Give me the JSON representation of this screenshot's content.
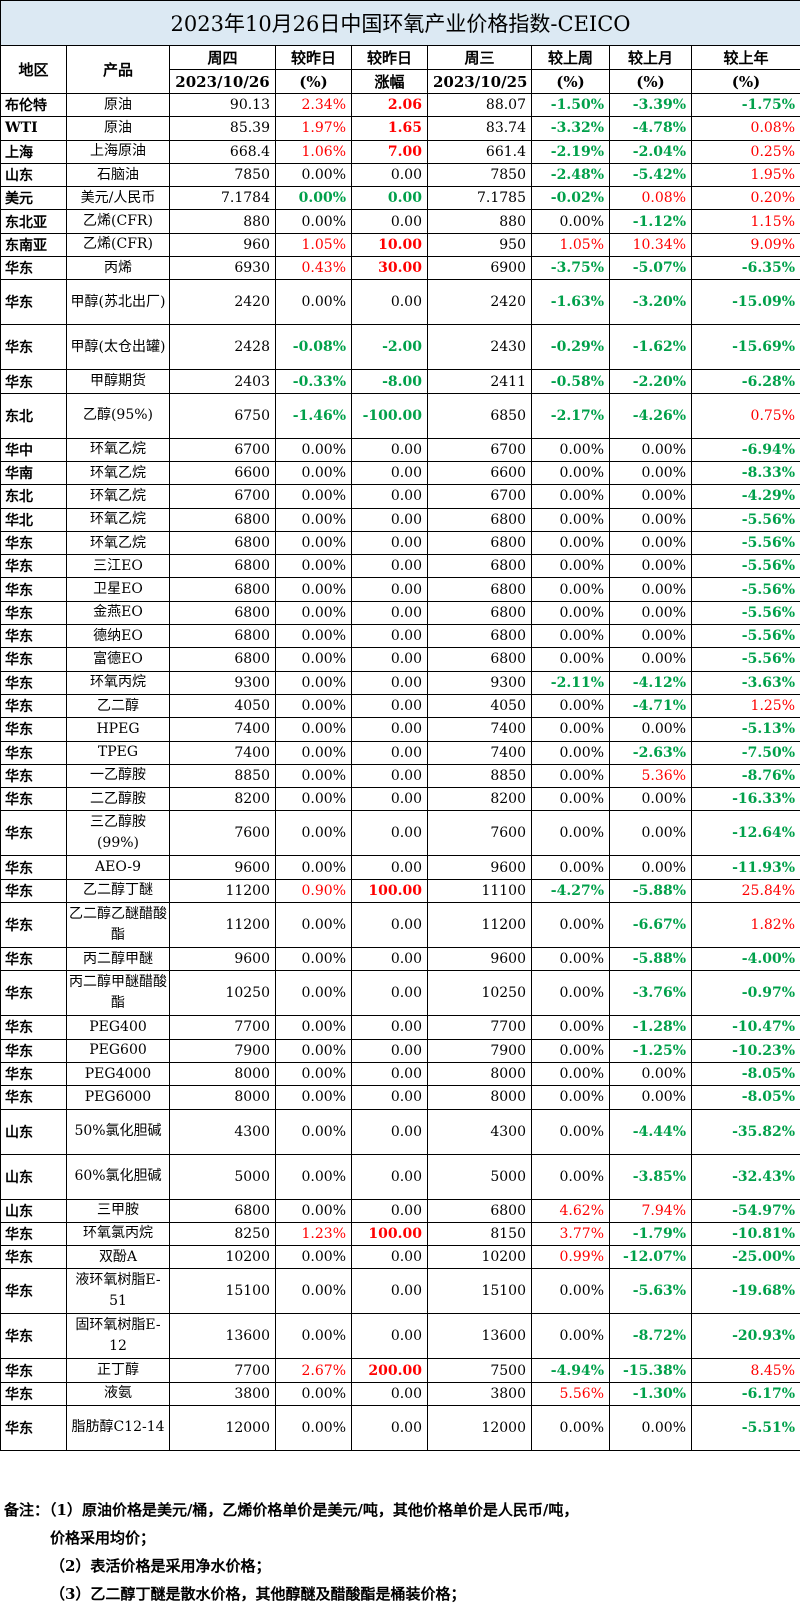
{
  "title": "2023年10月26日中国环氧产业价格指数-CEICO",
  "headers": {
    "region": "地区",
    "product": "产品",
    "thu": "周四",
    "thu_date": "2023/10/26",
    "vs_yesterday_pct": "较昨日",
    "pct_unit": "(%)",
    "vs_yesterday_abs": "较昨日",
    "abs_unit": "涨幅",
    "wed": "周三",
    "wed_date": "2023/10/25",
    "vs_last_week": "较上周",
    "vs_last_month": "较上月",
    "vs_last_year": "较上年"
  },
  "rows": [
    {
      "region": "布伦特",
      "product": "原油",
      "thu": "90.13",
      "dpct": "2.34%",
      "dabs": "2.06",
      "wed": "88.07",
      "week": "-1.50%",
      "month": "-3.39%",
      "year": "-1.75%"
    },
    {
      "region": "WTI",
      "product": "原油",
      "thu": "85.39",
      "dpct": "1.97%",
      "dabs": "1.65",
      "wed": "83.74",
      "week": "-3.32%",
      "month": "-4.78%",
      "year": "0.08%"
    },
    {
      "region": "上海",
      "product": "上海原油",
      "thu": "668.4",
      "dpct": "1.06%",
      "dabs": "7.00",
      "wed": "661.4",
      "week": "-2.19%",
      "month": "-2.04%",
      "year": "0.25%"
    },
    {
      "region": "山东",
      "product": "石脑油",
      "thu": "7850",
      "dpct": "0.00%",
      "dabs": "0.00",
      "wed": "7850",
      "week": "-2.48%",
      "month": "-5.42%",
      "year": "1.95%"
    },
    {
      "region": "美元",
      "product": "美元/人民币",
      "thu": "7.1784",
      "dpct": "0.00%",
      "dabs": "0.00",
      "wed": "7.1785",
      "week": "-0.02%",
      "month": "0.08%",
      "year": "0.20%"
    },
    {
      "region": "东北亚",
      "product": "乙烯(CFR)",
      "thu": "880",
      "dpct": "0.00%",
      "dabs": "0.00",
      "wed": "880",
      "week": "0.00%",
      "month": "-1.12%",
      "year": "1.15%"
    },
    {
      "region": "东南亚",
      "product": "乙烯(CFR)",
      "thu": "960",
      "dpct": "1.05%",
      "dabs": "10.00",
      "wed": "950",
      "week": "1.05%",
      "month": "10.34%",
      "year": "9.09%"
    },
    {
      "region": "华东",
      "product": "丙烯",
      "thu": "6930",
      "dpct": "0.43%",
      "dabs": "30.00",
      "wed": "6900",
      "week": "-3.75%",
      "month": "-5.07%",
      "year": "-6.35%"
    },
    {
      "region": "华东",
      "product": "甲醇(苏北出厂)",
      "thu": "2420",
      "dpct": "0.00%",
      "dabs": "0.00",
      "wed": "2420",
      "week": "-1.63%",
      "month": "-3.20%",
      "year": "-15.09%"
    },
    {
      "region": "华东",
      "product": "甲醇(太仓出罐)",
      "thu": "2428",
      "dpct": "-0.08%",
      "dabs": "-2.00",
      "wed": "2430",
      "week": "-0.29%",
      "month": "-1.62%",
      "year": "-15.69%"
    },
    {
      "region": "华东",
      "product": "甲醇期货",
      "thu": "2403",
      "dpct": "-0.33%",
      "dabs": "-8.00",
      "wed": "2411",
      "week": "-0.58%",
      "month": "-2.20%",
      "year": "-6.28%"
    },
    {
      "region": "东北",
      "product": "乙醇(95%)",
      "thu": "6750",
      "dpct": "-1.46%",
      "dabs": "-100.00",
      "wed": "6850",
      "week": "-2.17%",
      "month": "-4.26%",
      "year": "0.75%"
    },
    {
      "region": "华中",
      "product": "环氧乙烷",
      "thu": "6700",
      "dpct": "0.00%",
      "dabs": "0.00",
      "wed": "6700",
      "week": "0.00%",
      "month": "0.00%",
      "year": "-6.94%"
    },
    {
      "region": "华南",
      "product": "环氧乙烷",
      "thu": "6600",
      "dpct": "0.00%",
      "dabs": "0.00",
      "wed": "6600",
      "week": "0.00%",
      "month": "0.00%",
      "year": "-8.33%"
    },
    {
      "region": "东北",
      "product": "环氧乙烷",
      "thu": "6700",
      "dpct": "0.00%",
      "dabs": "0.00",
      "wed": "6700",
      "week": "0.00%",
      "month": "0.00%",
      "year": "-4.29%"
    },
    {
      "region": "华北",
      "product": "环氧乙烷",
      "thu": "6800",
      "dpct": "0.00%",
      "dabs": "0.00",
      "wed": "6800",
      "week": "0.00%",
      "month": "0.00%",
      "year": "-5.56%"
    },
    {
      "region": "华东",
      "product": "环氧乙烷",
      "thu": "6800",
      "dpct": "0.00%",
      "dabs": "0.00",
      "wed": "6800",
      "week": "0.00%",
      "month": "0.00%",
      "year": "-5.56%"
    },
    {
      "region": "华东",
      "product": "三江EO",
      "thu": "6800",
      "dpct": "0.00%",
      "dabs": "0.00",
      "wed": "6800",
      "week": "0.00%",
      "month": "0.00%",
      "year": "-5.56%"
    },
    {
      "region": "华东",
      "product": "卫星EO",
      "thu": "6800",
      "dpct": "0.00%",
      "dabs": "0.00",
      "wed": "6800",
      "week": "0.00%",
      "month": "0.00%",
      "year": "-5.56%"
    },
    {
      "region": "华东",
      "product": "金燕EO",
      "thu": "6800",
      "dpct": "0.00%",
      "dabs": "0.00",
      "wed": "6800",
      "week": "0.00%",
      "month": "0.00%",
      "year": "-5.56%"
    },
    {
      "region": "华东",
      "product": "德纳EO",
      "thu": "6800",
      "dpct": "0.00%",
      "dabs": "0.00",
      "wed": "6800",
      "week": "0.00%",
      "month": "0.00%",
      "year": "-5.56%"
    },
    {
      "region": "华东",
      "product": "富德EO",
      "thu": "6800",
      "dpct": "0.00%",
      "dabs": "0.00",
      "wed": "6800",
      "week": "0.00%",
      "month": "0.00%",
      "year": "-5.56%"
    },
    {
      "region": "华东",
      "product": "环氧丙烷",
      "thu": "9300",
      "dpct": "0.00%",
      "dabs": "0.00",
      "wed": "9300",
      "week": "-2.11%",
      "month": "-4.12%",
      "year": "-3.63%"
    },
    {
      "region": "华东",
      "product": "乙二醇",
      "thu": "4050",
      "dpct": "0.00%",
      "dabs": "0.00",
      "wed": "4050",
      "week": "0.00%",
      "month": "-4.71%",
      "year": "1.25%"
    },
    {
      "region": "华东",
      "product": "HPEG",
      "thu": "7400",
      "dpct": "0.00%",
      "dabs": "0.00",
      "wed": "7400",
      "week": "0.00%",
      "month": "0.00%",
      "year": "-5.13%"
    },
    {
      "region": "华东",
      "product": "TPEG",
      "thu": "7400",
      "dpct": "0.00%",
      "dabs": "0.00",
      "wed": "7400",
      "week": "0.00%",
      "month": "-2.63%",
      "year": "-7.50%"
    },
    {
      "region": "华东",
      "product": "一乙醇胺",
      "thu": "8850",
      "dpct": "0.00%",
      "dabs": "0.00",
      "wed": "8850",
      "week": "0.00%",
      "month": "5.36%",
      "year": "-8.76%"
    },
    {
      "region": "华东",
      "product": "二乙醇胺",
      "thu": "8200",
      "dpct": "0.00%",
      "dabs": "0.00",
      "wed": "8200",
      "week": "0.00%",
      "month": "0.00%",
      "year": "-16.33%"
    },
    {
      "region": "华东",
      "product": "三乙醇胺(99%)",
      "thu": "7600",
      "dpct": "0.00%",
      "dabs": "0.00",
      "wed": "7600",
      "week": "0.00%",
      "month": "0.00%",
      "year": "-12.64%"
    },
    {
      "region": "华东",
      "product": "AEO-9",
      "thu": "9600",
      "dpct": "0.00%",
      "dabs": "0.00",
      "wed": "9600",
      "week": "0.00%",
      "month": "0.00%",
      "year": "-11.93%"
    },
    {
      "region": "华东",
      "product": "乙二醇丁醚",
      "thu": "11200",
      "dpct": "0.90%",
      "dabs": "100.00",
      "wed": "11100",
      "week": "-4.27%",
      "month": "-5.88%",
      "year": "25.84%"
    },
    {
      "region": "华东",
      "product": "乙二醇乙醚醋酸酯",
      "thu": "11200",
      "dpct": "0.00%",
      "dabs": "0.00",
      "wed": "11200",
      "week": "0.00%",
      "month": "-6.67%",
      "year": "1.82%"
    },
    {
      "region": "华东",
      "product": "丙二醇甲醚",
      "thu": "9600",
      "dpct": "0.00%",
      "dabs": "0.00",
      "wed": "9600",
      "week": "0.00%",
      "month": "-5.88%",
      "year": "-4.00%"
    },
    {
      "region": "华东",
      "product": "丙二醇甲醚醋酸酯",
      "thu": "10250",
      "dpct": "0.00%",
      "dabs": "0.00",
      "wed": "10250",
      "week": "0.00%",
      "month": "-3.76%",
      "year": "-0.97%"
    },
    {
      "region": "华东",
      "product": "PEG400",
      "thu": "7700",
      "dpct": "0.00%",
      "dabs": "0.00",
      "wed": "7700",
      "week": "0.00%",
      "month": "-1.28%",
      "year": "-10.47%"
    },
    {
      "region": "华东",
      "product": "PEG600",
      "thu": "7900",
      "dpct": "0.00%",
      "dabs": "0.00",
      "wed": "7900",
      "week": "0.00%",
      "month": "-1.25%",
      "year": "-10.23%"
    },
    {
      "region": "华东",
      "product": "PEG4000",
      "thu": "8000",
      "dpct": "0.00%",
      "dabs": "0.00",
      "wed": "8000",
      "week": "0.00%",
      "month": "0.00%",
      "year": "-8.05%"
    },
    {
      "region": "华东",
      "product": "PEG6000",
      "thu": "8000",
      "dpct": "0.00%",
      "dabs": "0.00",
      "wed": "8000",
      "week": "0.00%",
      "month": "0.00%",
      "year": "-8.05%"
    },
    {
      "region": "山东",
      "product": "50%氯化胆碱",
      "thu": "4300",
      "dpct": "0.00%",
      "dabs": "0.00",
      "wed": "4300",
      "week": "0.00%",
      "month": "-4.44%",
      "year": "-35.82%"
    },
    {
      "region": "山东",
      "product": "60%氯化胆碱",
      "thu": "5000",
      "dpct": "0.00%",
      "dabs": "0.00",
      "wed": "5000",
      "week": "0.00%",
      "month": "-3.85%",
      "year": "-32.43%"
    },
    {
      "region": "山东",
      "product": "三甲胺",
      "thu": "6800",
      "dpct": "0.00%",
      "dabs": "0.00",
      "wed": "6800",
      "week": "4.62%",
      "month": "7.94%",
      "year": "-54.97%"
    },
    {
      "region": "华东",
      "product": "环氧氯丙烷",
      "thu": "8250",
      "dpct": "1.23%",
      "dabs": "100.00",
      "wed": "8150",
      "week": "3.77%",
      "month": "-1.79%",
      "year": "-10.81%"
    },
    {
      "region": "华东",
      "product": "双酚A",
      "thu": "10200",
      "dpct": "0.00%",
      "dabs": "0.00",
      "wed": "10200",
      "week": "0.99%",
      "month": "-12.07%",
      "year": "-25.00%"
    },
    {
      "region": "华东",
      "product": "液环氧树脂E-51",
      "thu": "15100",
      "dpct": "0.00%",
      "dabs": "0.00",
      "wed": "15100",
      "week": "0.00%",
      "month": "-5.63%",
      "year": "-19.68%"
    },
    {
      "region": "华东",
      "product": "固环氧树脂E-12",
      "thu": "13600",
      "dpct": "0.00%",
      "dabs": "0.00",
      "wed": "13600",
      "week": "0.00%",
      "month": "-8.72%",
      "year": "-20.93%"
    },
    {
      "region": "华东",
      "product": "正丁醇",
      "thu": "7700",
      "dpct": "2.67%",
      "dabs": "200.00",
      "wed": "7500",
      "week": "-4.94%",
      "month": "-15.38%",
      "year": "8.45%"
    },
    {
      "region": "华东",
      "product": "液氨",
      "thu": "3800",
      "dpct": "0.00%",
      "dabs": "0.00",
      "wed": "3800",
      "week": "5.56%",
      "month": "-1.30%",
      "year": "-6.17%"
    },
    {
      "region": "华东",
      "product": "脂肪醇C12-14",
      "thu": "12000",
      "dpct": "0.00%",
      "dabs": "0.00",
      "wed": "12000",
      "week": "0.00%",
      "month": "0.00%",
      "year": "-5.51%"
    }
  ],
  "notes": [
    "备注：（1）原油价格是美元/桶，乙烯价格单价是美元/吨，其他价格单价是人民币/吨，",
    "价格采用均价；",
    "（2）表活价格是采用净水价格；",
    "（3）乙二醇丁醚是散水价格，其他醇醚及醋酸酯是桶装价格；"
  ],
  "colors": {
    "title_bg": "#dce9f3",
    "up": "#ff0000",
    "down": "#00a04a"
  }
}
